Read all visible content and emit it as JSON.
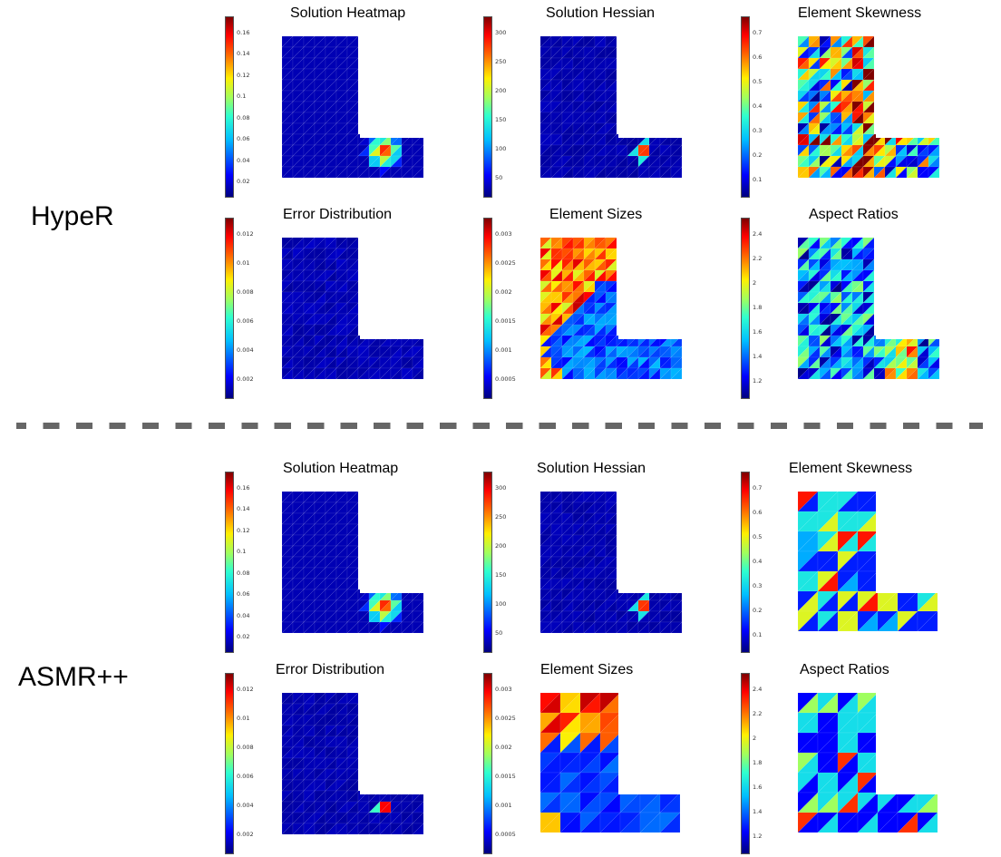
{
  "methods": [
    {
      "label": "HypeR",
      "panels": [
        {
          "title": "Solution Heatmap",
          "ticks": [
            "0.16",
            "0.14",
            "0.12",
            "0.1",
            "0.08",
            "0.06",
            "0.04",
            "0.02"
          ],
          "pattern": "heatmap"
        },
        {
          "title": "Solution Hessian",
          "ticks": [
            "300",
            "250",
            "200",
            "150",
            "100",
            "50"
          ],
          "pattern": "hessian"
        },
        {
          "title": "Element Skewness",
          "ticks": [
            "0.7",
            "0.6",
            "0.5",
            "0.4",
            "0.3",
            "0.2",
            "0.1"
          ],
          "pattern": "skew"
        },
        {
          "title": "Error Distribution",
          "ticks": [
            "0.012",
            "0.01",
            "0.008",
            "0.006",
            "0.004",
            "0.002"
          ],
          "pattern": "error"
        },
        {
          "title": "Element Sizes",
          "ticks": [
            "0.003",
            "0.0025",
            "0.002",
            "0.0015",
            "0.001",
            "0.0005"
          ],
          "pattern": "sizes"
        },
        {
          "title": "Aspect Ratios",
          "ticks": [
            "2.4",
            "2.2",
            "2",
            "1.8",
            "1.6",
            "1.4",
            "1.2"
          ],
          "pattern": "aspect"
        }
      ]
    },
    {
      "label": "ASMR++",
      "panels": [
        {
          "title": "Solution Heatmap",
          "ticks": [
            "0.16",
            "0.14",
            "0.12",
            "0.1",
            "0.08",
            "0.06",
            "0.04",
            "0.02"
          ],
          "pattern": "heatmap"
        },
        {
          "title": "Solution Hessian",
          "ticks": [
            "300",
            "250",
            "200",
            "150",
            "100",
            "50"
          ],
          "pattern": "hessian"
        },
        {
          "title": "Element Skewness",
          "ticks": [
            "0.7",
            "0.6",
            "0.5",
            "0.4",
            "0.3",
            "0.2",
            "0.1"
          ],
          "pattern": "skew2"
        },
        {
          "title": "Error Distribution",
          "ticks": [
            "0.012",
            "0.01",
            "0.008",
            "0.006",
            "0.004",
            "0.002"
          ],
          "pattern": "error2"
        },
        {
          "title": "Element Sizes",
          "ticks": [
            "0.003",
            "0.0025",
            "0.002",
            "0.0015",
            "0.001",
            "0.0005"
          ],
          "pattern": "sizes2"
        },
        {
          "title": "Aspect Ratios",
          "ticks": [
            "2.4",
            "2.2",
            "2",
            "1.8",
            "1.6",
            "1.4",
            "1.2"
          ],
          "pattern": "aspect2"
        }
      ]
    }
  ],
  "colors": {
    "jet_low": "#00007f",
    "jet_high": "#7f0000",
    "divider": "#666666"
  }
}
